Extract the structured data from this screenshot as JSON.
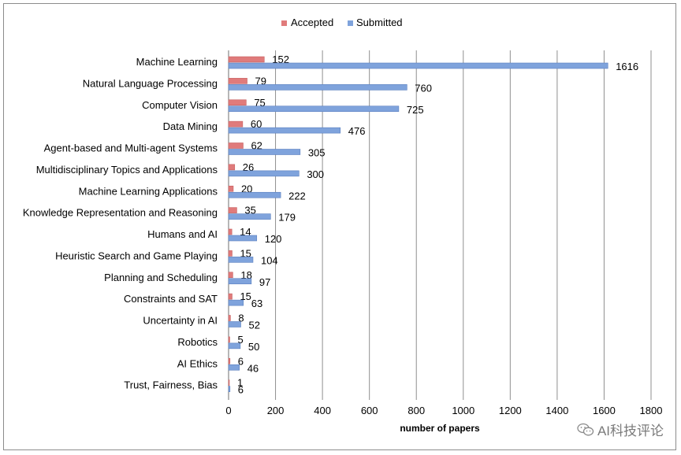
{
  "chart_data": {
    "type": "bar",
    "orientation": "horizontal",
    "categories": [
      "Machine Learning",
      "Natural Language Processing",
      "Computer Vision",
      "Data Mining",
      "Agent-based and Multi-agent Systems",
      "Multidisciplinary Topics and Applications",
      "Machine Learning Applications",
      "Knowledge Representation and Reasoning",
      "Humans and AI",
      "Heuristic Search and Game Playing",
      "Planning and Scheduling",
      "Constraints and SAT",
      "Uncertainty in AI",
      "Robotics",
      "AI Ethics",
      "Trust, Fairness, Bias"
    ],
    "series": [
      {
        "name": "Accepted",
        "color": "#e07b7b",
        "values": [
          152,
          79,
          75,
          60,
          62,
          26,
          20,
          35,
          14,
          15,
          18,
          15,
          8,
          5,
          6,
          1
        ]
      },
      {
        "name": "Submitted",
        "color": "#7fa3dc",
        "values": [
          1616,
          760,
          725,
          476,
          305,
          300,
          222,
          179,
          120,
          104,
          97,
          63,
          52,
          50,
          46,
          6
        ]
      }
    ],
    "xlabel": "number of papers",
    "ylabel": "",
    "title": "",
    "xlim": [
      0,
      1800
    ],
    "xticks": [
      0,
      200,
      400,
      600,
      800,
      1000,
      1200,
      1400,
      1600,
      1800
    ],
    "grid": "vertical",
    "legend_position": "top"
  },
  "watermark": {
    "text": "AI科技评论",
    "icon": "wechat-icon"
  }
}
